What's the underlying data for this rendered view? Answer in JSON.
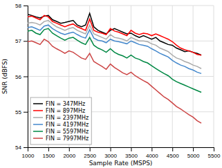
{
  "chart_data": {
    "type": "line",
    "xlabel": "Sample Rate (MSPS)",
    "ylabel": "SNR (dBFS)",
    "xlim": [
      1000,
      5500
    ],
    "ylim": [
      54,
      58
    ],
    "xticks": [
      1000,
      1500,
      2000,
      2500,
      3000,
      3500,
      4000,
      4500,
      5000,
      5500
    ],
    "yticks": [
      54,
      55,
      56,
      57,
      58
    ],
    "grid": true,
    "legend": "lower left",
    "x": [
      1000,
      1100,
      1200,
      1300,
      1400,
      1500,
      1600,
      1700,
      1800,
      1900,
      2000,
      2100,
      2200,
      2300,
      2400,
      2500,
      2600,
      2700,
      2800,
      2900,
      3000,
      3100,
      3200,
      3300,
      3400,
      3500,
      3600,
      3700,
      3800,
      3900,
      4000,
      4100,
      4200,
      4300,
      4400,
      4500,
      4600,
      4700,
      4800,
      4900,
      5000,
      5100,
      5200
    ],
    "series": [
      {
        "name": "FIN = 347MHz",
        "color": "black",
        "values": [
          57.75,
          57.72,
          57.68,
          57.65,
          57.7,
          57.72,
          57.6,
          57.55,
          57.5,
          57.52,
          57.55,
          57.58,
          57.45,
          57.4,
          57.45,
          57.78,
          57.4,
          57.3,
          57.25,
          57.2,
          57.3,
          57.35,
          57.3,
          57.25,
          57.2,
          57.22,
          57.15,
          57.1,
          57.15,
          57.1,
          57.05,
          57.1,
          57.0,
          56.95,
          56.9,
          56.88,
          56.8,
          56.75,
          56.7,
          56.72,
          56.68,
          56.65,
          56.6
        ]
      },
      {
        "name": "FIN = 897MHz",
        "color": "#ff0000",
        "values": [
          57.68,
          57.7,
          57.65,
          57.6,
          57.72,
          57.68,
          57.55,
          57.5,
          57.45,
          57.4,
          57.45,
          57.48,
          57.4,
          57.35,
          57.3,
          57.62,
          57.3,
          57.25,
          57.22,
          57.18,
          57.35,
          57.28,
          57.25,
          57.2,
          57.15,
          57.3,
          57.22,
          57.18,
          57.22,
          57.2,
          57.15,
          57.2,
          57.15,
          57.1,
          57.05,
          56.98,
          56.88,
          56.8,
          56.75,
          56.72,
          56.68,
          56.62,
          56.6
        ]
      },
      {
        "name": "FIN = 2397MHz",
        "color": "#aaaaaa",
        "values": [
          57.5,
          57.52,
          57.5,
          57.45,
          57.55,
          57.58,
          57.48,
          57.4,
          57.35,
          57.3,
          57.35,
          57.38,
          57.3,
          57.25,
          57.2,
          57.45,
          57.2,
          57.15,
          57.1,
          57.05,
          57.18,
          57.1,
          57.08,
          57.05,
          57.0,
          57.1,
          57.05,
          57.0,
          57.0,
          56.98,
          56.92,
          56.88,
          56.8,
          56.75,
          56.7,
          56.6,
          56.52,
          56.48,
          56.42,
          56.38,
          56.32,
          56.28,
          56.22
        ]
      },
      {
        "name": "FIN = 4197MHz",
        "color": "#4488cc",
        "values": [
          57.38,
          57.4,
          57.35,
          57.3,
          57.42,
          57.45,
          57.35,
          57.28,
          57.22,
          57.18,
          57.22,
          57.25,
          57.18,
          57.12,
          57.08,
          57.32,
          57.08,
          57.02,
          57.0,
          56.95,
          57.05,
          57.0,
          56.98,
          56.95,
          56.92,
          57.0,
          56.95,
          56.9,
          56.88,
          56.85,
          56.78,
          56.72,
          56.65,
          56.6,
          56.55,
          56.45,
          56.38,
          56.32,
          56.28,
          56.22,
          56.18,
          56.12,
          56.08
        ]
      },
      {
        "name": "FIN = 5597MHz",
        "color": "#008844",
        "values": [
          57.28,
          57.3,
          57.22,
          57.18,
          57.32,
          57.35,
          57.22,
          57.15,
          57.08,
          57.02,
          57.08,
          57.1,
          57.02,
          56.95,
          56.9,
          57.1,
          56.88,
          56.8,
          56.75,
          56.68,
          56.78,
          56.68,
          56.62,
          56.58,
          56.52,
          56.6,
          56.52,
          56.48,
          56.42,
          56.38,
          56.3,
          56.22,
          56.15,
          56.08,
          56.02,
          55.92,
          55.85,
          55.8,
          55.75,
          55.7,
          55.65,
          55.6,
          55.55
        ]
      },
      {
        "name": "FIN = 7997MHz",
        "color": "#cc4444",
        "values": [
          56.98,
          57.0,
          56.95,
          56.9,
          57.05,
          56.98,
          56.85,
          56.78,
          56.72,
          56.65,
          56.72,
          56.68,
          56.6,
          56.52,
          56.48,
          56.65,
          56.42,
          56.35,
          56.28,
          56.2,
          56.35,
          56.25,
          56.18,
          56.1,
          56.05,
          56.12,
          56.02,
          55.95,
          55.88,
          55.82,
          55.72,
          55.62,
          55.52,
          55.42,
          55.35,
          55.25,
          55.15,
          55.08,
          55.0,
          54.92,
          54.85,
          54.75,
          54.68
        ]
      }
    ]
  }
}
